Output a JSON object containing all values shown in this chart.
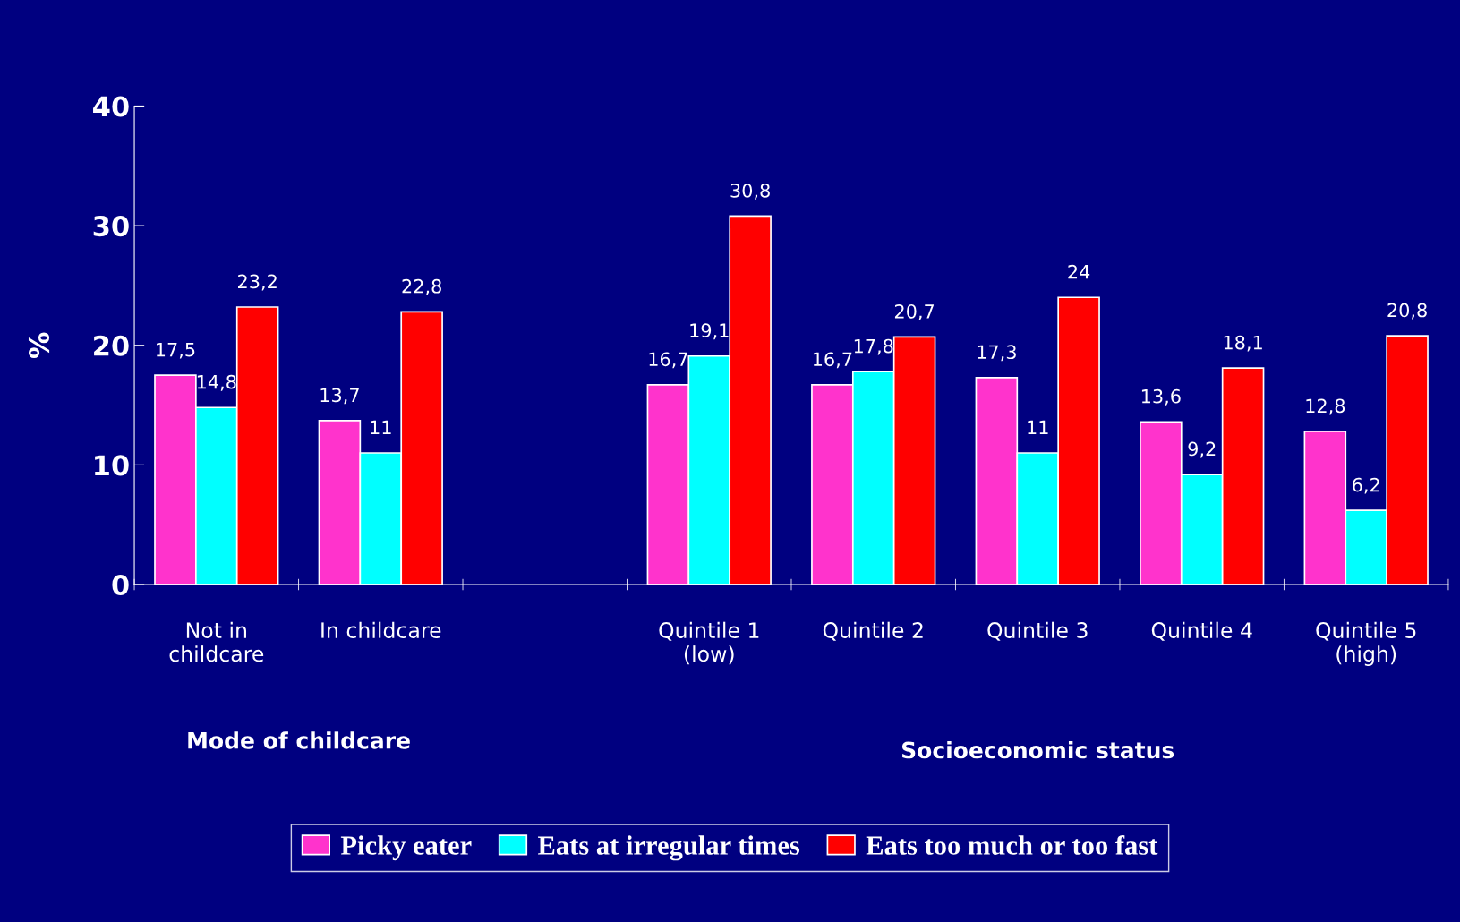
{
  "chart_data": {
    "type": "bar",
    "ylabel": "%",
    "categories": [
      "Not in\nchildcare",
      "In childcare",
      null,
      "Quintile 1\n(low)",
      "Quintile 2",
      "Quintile 3",
      "Quintile 4",
      "Quintile 5\n(high)"
    ],
    "series": [
      {
        "name": "Picky eater",
        "color": "#ff33cc",
        "values": [
          17.5,
          13.7,
          null,
          16.7,
          16.7,
          17.3,
          13.6,
          12.8
        ],
        "value_labels": [
          "17,5",
          "13,7",
          null,
          "16,7",
          "16,7",
          "17,3",
          "13,6",
          "12,8"
        ]
      },
      {
        "name": "Eats at irregular times",
        "color": "#00ffff",
        "values": [
          14.8,
          11,
          null,
          19.1,
          17.8,
          11,
          9.2,
          6.2
        ],
        "value_labels": [
          "14,8",
          "11",
          null,
          "19,1",
          "17,8",
          "11",
          "9,2",
          "6,2"
        ]
      },
      {
        "name": "Eats too much or too fast",
        "color": "#ff0000",
        "values": [
          23.2,
          22.8,
          null,
          30.8,
          20.7,
          24,
          18.1,
          20.8
        ],
        "value_labels": [
          "23,2",
          "22,8",
          null,
          "30,8",
          "20,7",
          "24",
          "18,1",
          "20,8"
        ]
      }
    ],
    "annotations": [
      "Mode of childcare",
      "Socioeconomic status"
    ],
    "ylim": [
      0,
      40
    ],
    "yticks": [
      0,
      10,
      20,
      30,
      40
    ],
    "grid": false,
    "legend": "bottom"
  }
}
